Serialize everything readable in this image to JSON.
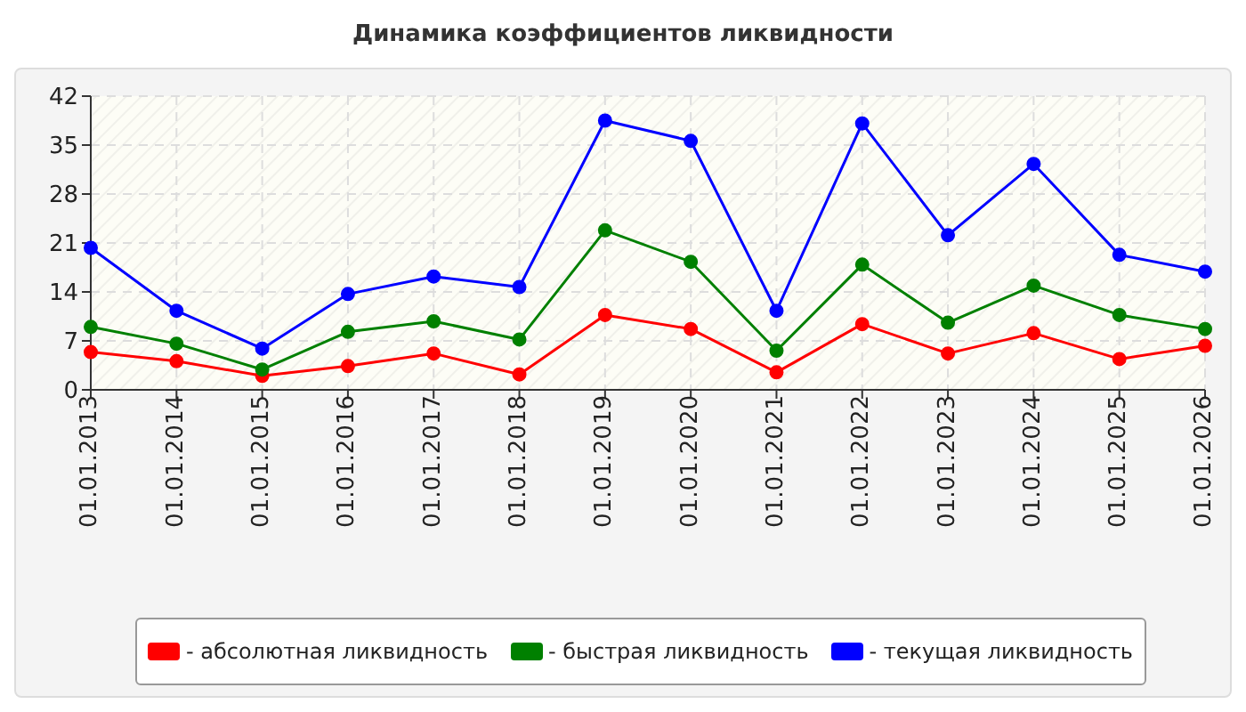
{
  "chart_data": {
    "type": "line",
    "title": "Динамика коэффициентов ликвидности",
    "categories": [
      "01.01.2013",
      "01.01.2014",
      "01.01.2015",
      "01.01.2016",
      "01.01.2017",
      "01.01.2018",
      "01.01.2019",
      "01.01.2020",
      "01.01.2021",
      "01.01.2022",
      "01.01.2023",
      "01.01.2024",
      "01.01.2025",
      "01.01.2026"
    ],
    "series": [
      {
        "name": "- абсолютная ликвидность",
        "color": "#ff0000",
        "values": [
          5.4,
          4.1,
          2.0,
          3.4,
          5.2,
          2.2,
          10.7,
          8.7,
          2.5,
          9.4,
          5.2,
          8.1,
          4.4,
          6.3
        ]
      },
      {
        "name": "- быстрая ликвидность",
        "color": "#008000",
        "values": [
          9.0,
          6.6,
          2.9,
          8.3,
          9.8,
          7.2,
          22.8,
          18.3,
          5.6,
          17.9,
          9.6,
          14.9,
          10.7,
          8.7
        ]
      },
      {
        "name": "- текущая ликвидность",
        "color": "#0000ff",
        "values": [
          20.3,
          11.3,
          5.9,
          13.7,
          16.2,
          14.7,
          38.5,
          35.6,
          11.3,
          38.1,
          22.1,
          32.3,
          19.3,
          16.9
        ]
      }
    ],
    "ylim": [
      0,
      42
    ],
    "yticks": [
      0,
      7,
      14,
      21,
      28,
      35,
      42
    ],
    "grid": true,
    "legend": "bottom",
    "marker": "circle",
    "line_style": "solid"
  }
}
